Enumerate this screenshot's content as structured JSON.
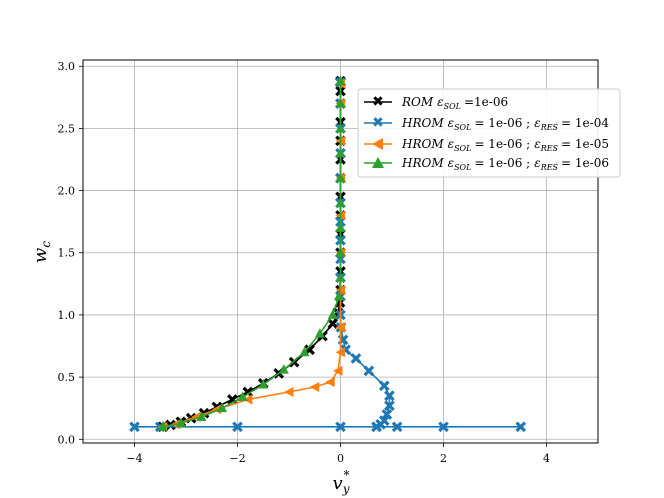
{
  "chart_data": {
    "type": "line",
    "xlabel": "v_y^*",
    "ylabel": "w_c",
    "xlim": [
      -5,
      5
    ],
    "ylim": [
      -0.03,
      3.05
    ],
    "xticks": [
      "−4",
      "−2",
      "0",
      "2",
      "4"
    ],
    "yticks": [
      "0.0",
      "0.5",
      "1.0",
      "1.5",
      "2.0",
      "2.5",
      "3.0"
    ],
    "grid": true,
    "legend_position": "top-right",
    "series": [
      {
        "name": "ROM ε_SOL =1e-06",
        "color": "#000000",
        "marker": "x",
        "x": [
          -3.45,
          -3.3,
          -3.1,
          -2.9,
          -2.65,
          -2.4,
          -2.1,
          -1.8,
          -1.5,
          -1.2,
          -0.9,
          -0.6,
          -0.35,
          -0.15,
          -0.05,
          -0.01,
          0.0,
          0.0,
          0.0,
          0.0,
          0.0,
          0.0,
          0.0,
          0.0,
          0.0,
          0.0,
          0.0,
          0.0,
          0.0,
          0.0
        ],
        "y": [
          0.1,
          0.115,
          0.14,
          0.17,
          0.21,
          0.26,
          0.32,
          0.38,
          0.45,
          0.53,
          0.62,
          0.72,
          0.83,
          0.93,
          1.02,
          1.1,
          1.2,
          1.35,
          1.5,
          1.65,
          1.8,
          1.95,
          2.1,
          2.25,
          2.4,
          2.55,
          2.7,
          2.8,
          2.87,
          2.88
        ]
      },
      {
        "name": "HROM ε_SOL = 1e-06 ; ε_RES = 1e-04",
        "color": "#1f77b4",
        "marker": "x",
        "x": [
          -4.0,
          -3.5,
          -2.0,
          0.0,
          0.7,
          1.1,
          2.0,
          3.5,
          0.7,
          0.78,
          0.85,
          0.9,
          0.95,
          0.95,
          0.85,
          0.55,
          0.3,
          0.1,
          0.05,
          0.01,
          0.0,
          0.0,
          0.0,
          0.0,
          0.0,
          0.0,
          0.0,
          0.0,
          0.0,
          0.0,
          0.0,
          0.0
        ],
        "y": [
          0.1,
          0.1,
          0.1,
          0.1,
          0.1,
          0.1,
          0.1,
          0.1,
          0.1,
          0.12,
          0.15,
          0.2,
          0.27,
          0.35,
          0.43,
          0.55,
          0.65,
          0.72,
          0.8,
          0.9,
          1.0,
          1.15,
          1.3,
          1.45,
          1.6,
          1.75,
          1.9,
          2.1,
          2.3,
          2.5,
          2.7,
          2.87
        ]
      },
      {
        "name": "HROM ε_SOL = 1e-06 ; ε_RES = 1e-05",
        "color": "#ff7f0e",
        "marker": "<",
        "x": [
          -3.45,
          -3.2,
          -2.8,
          -2.4,
          -1.8,
          -1.0,
          -0.5,
          -0.2,
          -0.05,
          0.0,
          0.0,
          0.0,
          0.0,
          0.0,
          0.0,
          0.0,
          0.0,
          0.0
        ],
        "y": [
          0.1,
          0.12,
          0.18,
          0.24,
          0.32,
          0.38,
          0.42,
          0.46,
          0.55,
          0.7,
          0.9,
          1.2,
          1.5,
          1.8,
          2.1,
          2.4,
          2.7,
          2.86
        ]
      },
      {
        "name": "HROM ε_SOL = 1e-06 ; ε_RES = 1e-06",
        "color": "#2ca02c",
        "marker": "^",
        "x": [
          -3.45,
          -3.1,
          -2.7,
          -2.3,
          -1.9,
          -1.5,
          -1.1,
          -0.7,
          -0.4,
          -0.15,
          -0.03,
          0.0,
          0.0,
          0.0,
          0.0,
          0.0,
          0.0,
          0.0,
          0.0,
          0.0
        ],
        "y": [
          0.1,
          0.13,
          0.18,
          0.25,
          0.34,
          0.44,
          0.56,
          0.7,
          0.85,
          1.0,
          1.15,
          1.3,
          1.5,
          1.7,
          1.9,
          2.1,
          2.3,
          2.5,
          2.7,
          2.88
        ]
      }
    ]
  }
}
